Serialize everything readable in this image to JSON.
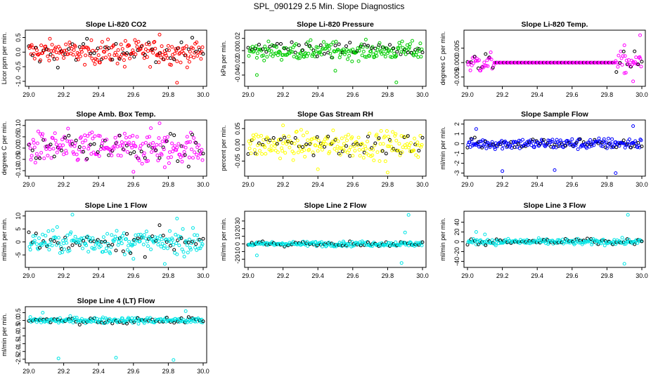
{
  "page_title": "SPL_090129  2.5 Min. Slope Diagnostics",
  "chart_data": [
    {
      "type": "scatter",
      "title": "Slope Li-820 CO2",
      "ylabel": "Licor ppm per min.",
      "xlim": [
        29.0,
        30.0
      ],
      "xticks": [
        29.0,
        29.2,
        29.4,
        29.6,
        29.8,
        30.0
      ],
      "ylim": [
        -1.1,
        0.68
      ],
      "yticks": [
        -1.0,
        -0.5,
        0.0,
        0.5
      ],
      "ytick_labels": [
        "-1.0",
        "-0.5",
        "0.0",
        "0.5"
      ],
      "color": "#ff0000",
      "spread": 0.2,
      "outliers": [
        [
          29.85,
          -1.05
        ],
        [
          29.75,
          0.6
        ],
        [
          29.55,
          -0.5
        ]
      ]
    },
    {
      "type": "scatter",
      "title": "Slope Li-820 Pressure",
      "ylabel": "kPa per min.",
      "xlim": [
        29.0,
        30.0
      ],
      "xticks": [
        29.0,
        29.2,
        29.4,
        29.6,
        29.8,
        30.0
      ],
      "ylim": [
        -0.055,
        0.03
      ],
      "yticks": [
        -0.04,
        -0.02,
        0.0,
        0.02
      ],
      "ytick_labels": [
        "-0.04",
        "-0.02",
        "0.00",
        "0.02"
      ],
      "color": "#00cc00",
      "spread": 0.007,
      "outliers": [
        [
          29.85,
          -0.052
        ],
        [
          29.05,
          -0.04
        ],
        [
          29.5,
          -0.033
        ]
      ]
    },
    {
      "type": "scatter",
      "title": "Slope Li-820 Temp.",
      "ylabel": "degrees C per min.",
      "xlim": [
        29.0,
        30.0
      ],
      "xticks": [
        29.0,
        29.2,
        29.4,
        29.6,
        29.8,
        30.0
      ],
      "ylim": [
        -0.0075,
        0.0105
      ],
      "yticks": [
        -0.005,
        0.0,
        0.005
      ],
      "ytick_labels": [
        "-0.005",
        "0.000",
        "0.005"
      ],
      "color": "#ff00ff",
      "spread": 0.0018,
      "flat_range": [
        29.15,
        29.85
      ],
      "outliers": [
        [
          29.99,
          0.0095
        ],
        [
          29.95,
          -0.0065
        ],
        [
          29.9,
          0.006
        ]
      ]
    },
    {
      "type": "scatter",
      "title": "Slope Amb. Box Temp.",
      "ylabel": "degrees C per min.",
      "xlim": [
        29.0,
        30.0
      ],
      "xticks": [
        29.0,
        29.2,
        29.4,
        29.6,
        29.8,
        30.0
      ],
      "ylim": [
        -0.115,
        0.115
      ],
      "yticks": [
        -0.1,
        -0.05,
        0.0,
        0.05,
        0.1
      ],
      "ytick_labels": [
        "-0.10",
        "-0.05",
        "0.00",
        "0.05",
        "0.10"
      ],
      "color": "#ff00ff",
      "spread": 0.035,
      "outliers": [
        [
          29.75,
          0.11
        ],
        [
          29.6,
          -0.105
        ],
        [
          29.78,
          -0.085
        ]
      ]
    },
    {
      "type": "scatter",
      "title": "Slope Gas Stream RH",
      "ylabel": "percent per min.",
      "xlim": [
        29.0,
        30.0
      ],
      "xticks": [
        29.0,
        29.2,
        29.4,
        29.6,
        29.8,
        30.0
      ],
      "ylim": [
        -0.09,
        0.07
      ],
      "yticks": [
        -0.05,
        0.0,
        0.05
      ],
      "ytick_labels": [
        "-0.05",
        "0.00",
        "0.05"
      ],
      "color": "#ffff00",
      "spread": 0.02,
      "outliers": [
        [
          29.8,
          -0.085
        ],
        [
          29.2,
          0.06
        ],
        [
          29.4,
          -0.075
        ]
      ]
    },
    {
      "type": "scatter",
      "title": "Slope Sample Flow",
      "ylabel": "ml/min per min.",
      "xlim": [
        29.0,
        30.0
      ],
      "xticks": [
        29.0,
        29.2,
        29.4,
        29.6,
        29.8,
        30.0
      ],
      "ylim": [
        -3.1,
        2.2
      ],
      "yticks": [
        -3,
        -2,
        -1,
        0,
        1,
        2
      ],
      "ytick_labels": [
        "-3",
        "-2",
        "-1",
        "0",
        "1",
        "2"
      ],
      "color": "#0000ff",
      "spread": 0.28,
      "outliers": [
        [
          29.85,
          -3.0
        ],
        [
          29.2,
          -2.8
        ],
        [
          29.5,
          -2.7
        ],
        [
          29.05,
          1.5
        ],
        [
          29.95,
          1.8
        ]
      ]
    },
    {
      "type": "scatter",
      "title": "Slope Line 1 Flow",
      "ylabel": "ml/min per min.",
      "xlim": [
        29.0,
        30.0
      ],
      "xticks": [
        29.0,
        29.2,
        29.4,
        29.6,
        29.8,
        30.0
      ],
      "ylim": [
        -9,
        11
      ],
      "yticks": [
        -5,
        0,
        5,
        10
      ],
      "ytick_labels": [
        "-5",
        "0",
        "5",
        "10"
      ],
      "color": "#00e5e5",
      "spread": 2.2,
      "outliers": [
        [
          29.25,
          10.5
        ],
        [
          29.78,
          -8.5
        ],
        [
          29.6,
          -6.5
        ],
        [
          29.85,
          9.0
        ]
      ]
    },
    {
      "type": "scatter",
      "title": "Slope Line 2 Flow",
      "ylabel": "ml/min per min.",
      "xlim": [
        29.0,
        30.0
      ],
      "xticks": [
        29.0,
        29.2,
        29.4,
        29.6,
        29.8,
        30.0
      ],
      "ylim": [
        -28,
        40
      ],
      "yticks": [
        -20,
        -10,
        0,
        10,
        20,
        30
      ],
      "ytick_labels": [
        "-20",
        "-10",
        "0",
        "10",
        "20",
        "30"
      ],
      "color": "#00e5e5",
      "spread": 1.6,
      "outliers": [
        [
          29.88,
          -25
        ],
        [
          29.92,
          38
        ],
        [
          29.05,
          -15
        ],
        [
          29.9,
          15
        ]
      ]
    },
    {
      "type": "scatter",
      "title": "Slope Line 3 Flow",
      "ylabel": "ml/min per min.",
      "xlim": [
        29.0,
        30.0
      ],
      "xticks": [
        29.0,
        29.2,
        29.4,
        29.6,
        29.8,
        30.0
      ],
      "ylim": [
        -48,
        58
      ],
      "yticks": [
        -40,
        -20,
        0,
        20,
        40
      ],
      "ytick_labels": [
        "-40",
        "-20",
        "0",
        "20",
        "40"
      ],
      "color": "#00e5e5",
      "spread": 3.0,
      "outliers": [
        [
          29.9,
          -45
        ],
        [
          29.92,
          55
        ],
        [
          29.05,
          20
        ],
        [
          29.1,
          15
        ]
      ]
    },
    {
      "type": "scatter",
      "title": "Slope Line 4 (LT) Flow",
      "ylabel": "ml/min per min.",
      "xlim": [
        29.0,
        30.0
      ],
      "xticks": [
        29.0,
        29.2,
        29.4,
        29.6,
        29.8,
        30.0
      ],
      "ylim": [
        -2.6,
        0.75
      ],
      "yticks": [
        -2.5,
        -2.0,
        -1.5,
        -1.0,
        -0.5,
        0.0,
        0.5
      ],
      "ytick_labels": [
        "-2.5",
        "-2.0",
        "-1.5",
        "-1.0",
        "-0.5",
        "0.0",
        "0.5"
      ],
      "color": "#00e5e5",
      "spread": 0.1,
      "outliers": [
        [
          29.17,
          -2.45
        ],
        [
          29.5,
          -2.4
        ],
        [
          29.83,
          -2.55
        ],
        [
          29.9,
          0.6
        ],
        [
          29.08,
          0.5
        ]
      ]
    }
  ]
}
